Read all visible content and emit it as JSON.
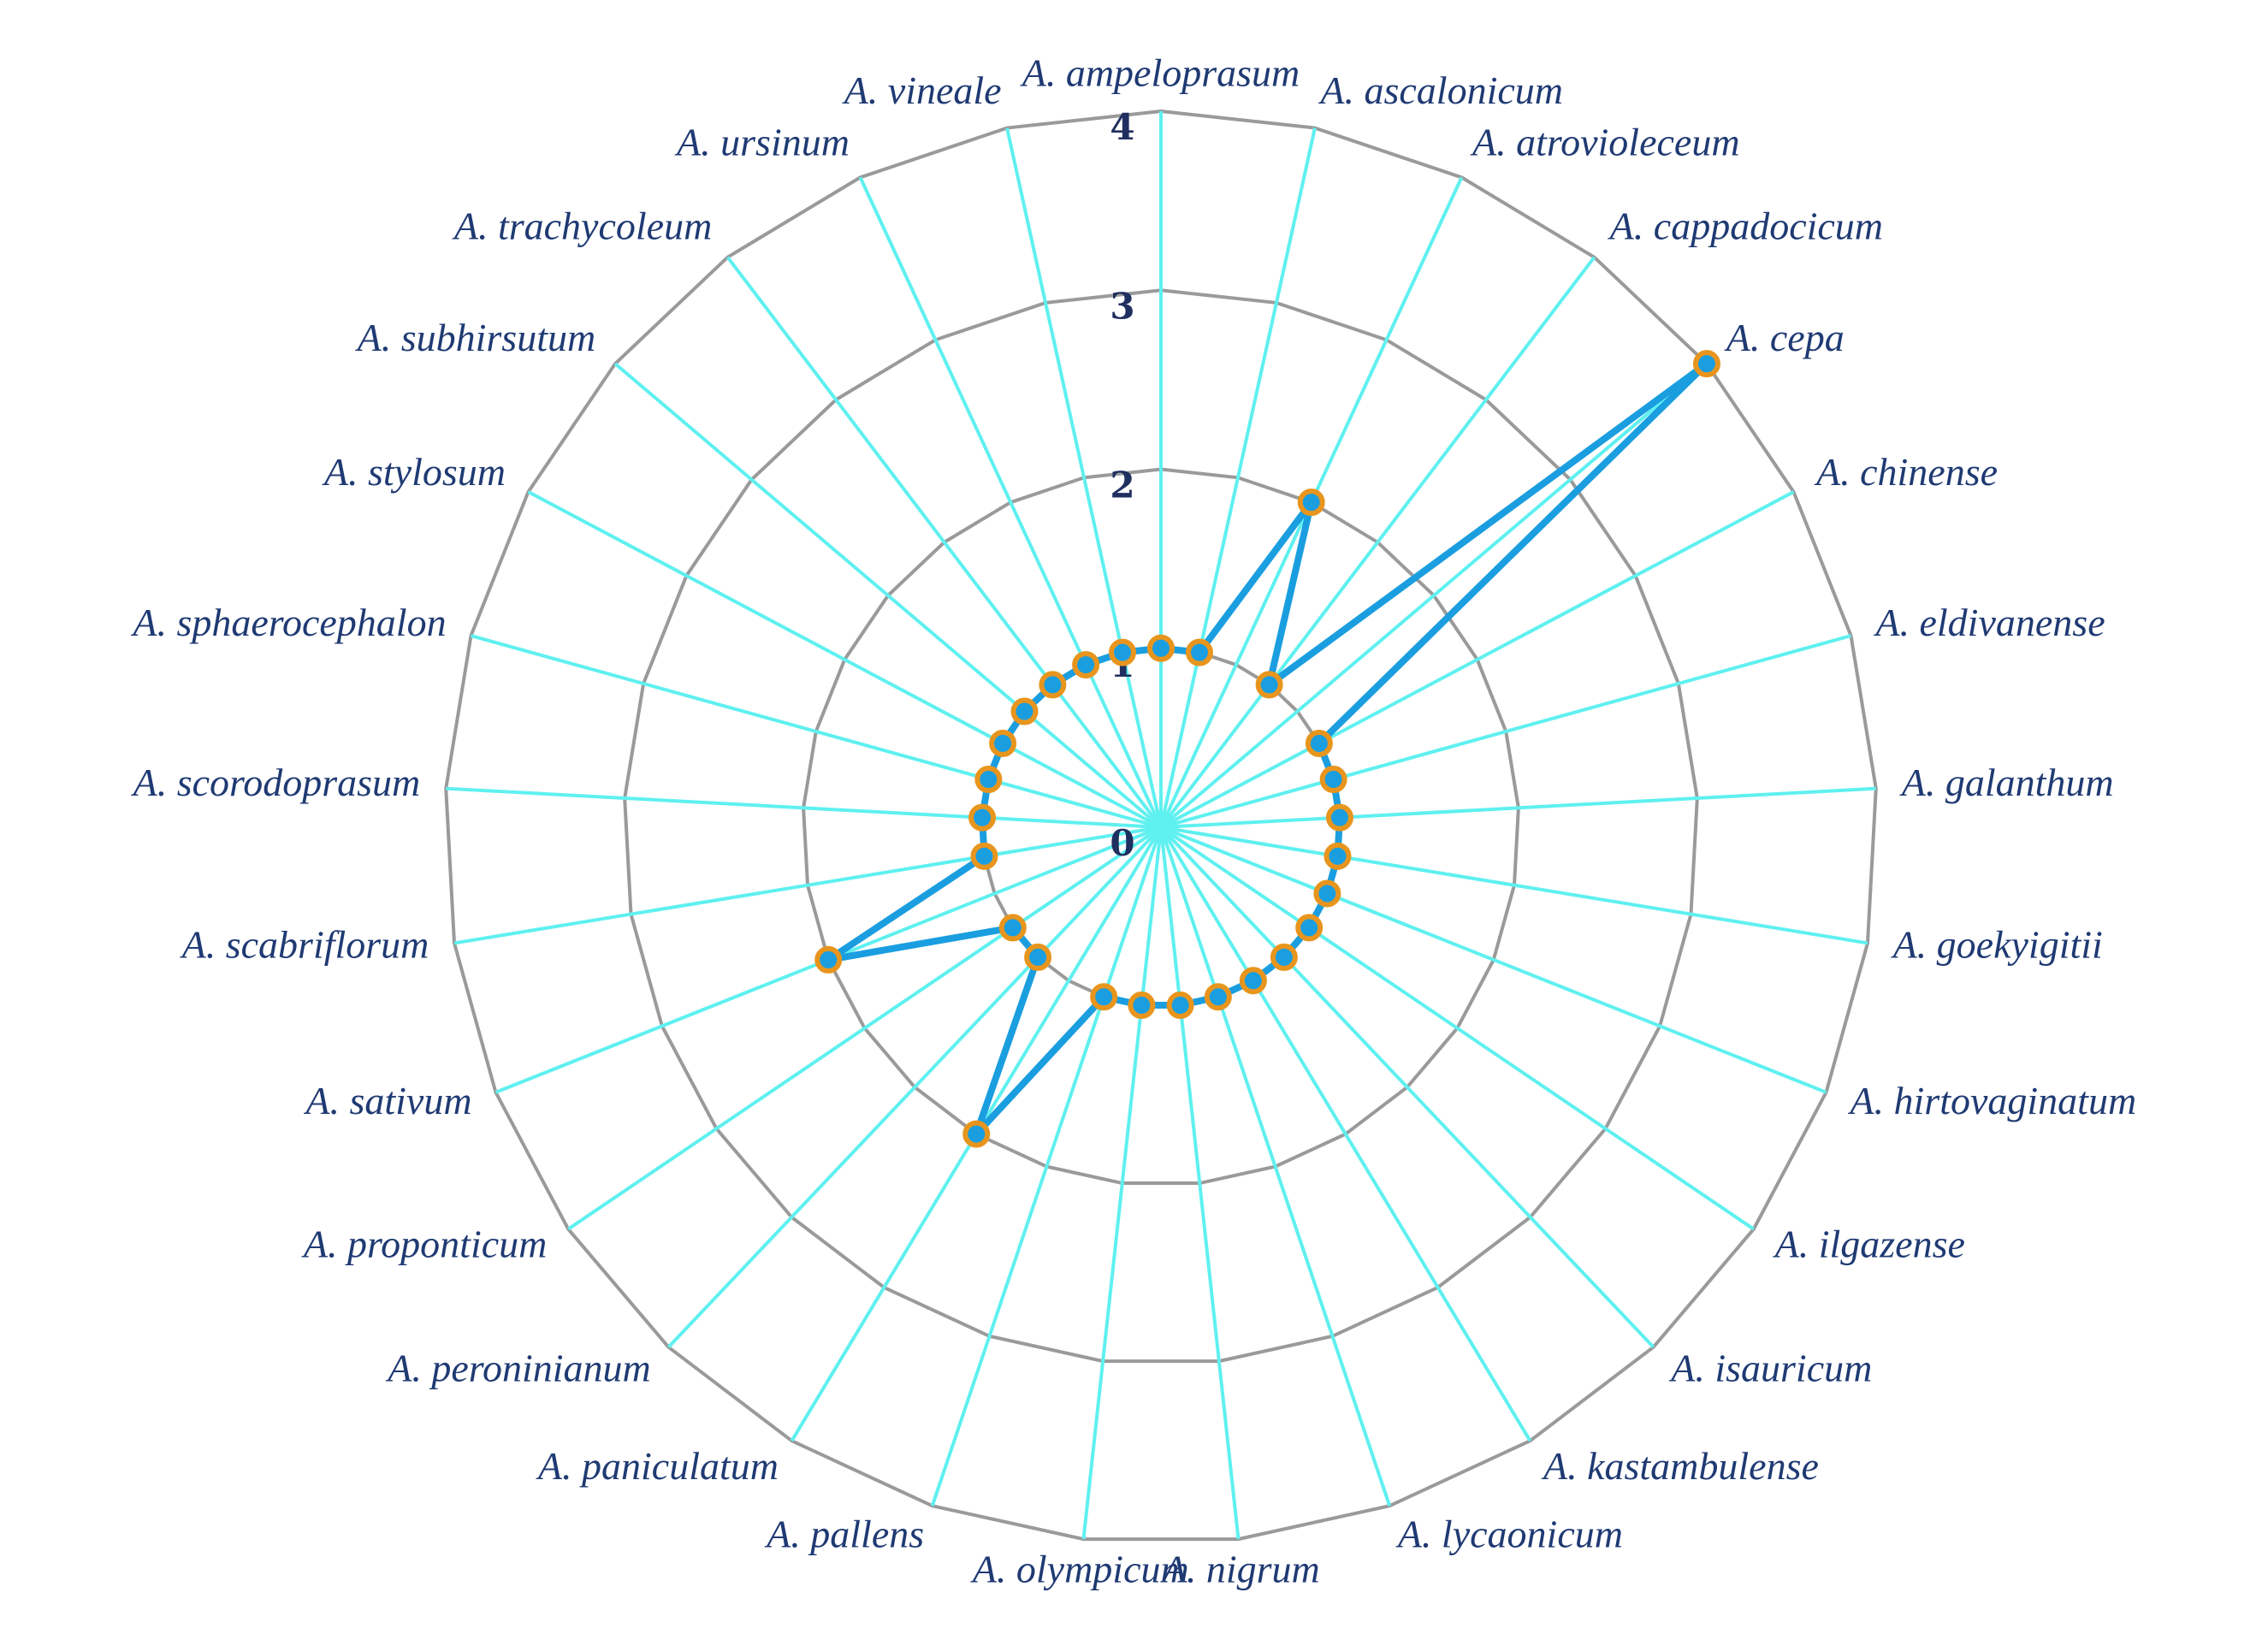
{
  "chart_data": {
    "type": "radar",
    "categories": [
      "A. ampeloprasum",
      "A. ascalonicum",
      "A. atrovioleceum",
      "A. cappadocicum",
      "A. cepa",
      "A. chinense",
      "A. eldivanense",
      "A. galanthum",
      "A. goekyigitii",
      "A. hirtovaginatum",
      "A. ilgazense",
      "A. isauricum",
      "A. kastambulense",
      "A. lycaonicum",
      "A. nigrum",
      "A. olympicum",
      "A. pallens",
      "A. paniculatum",
      "A. peroninianum",
      "A. proponticum",
      "A. sativum",
      "A. scabriflorum",
      "A. scorodoprasum",
      "A. sphaerocephalon",
      "A. stylosum",
      "A. subhirsutum",
      "A. trachycoleum",
      "A. ursinum",
      "A. vineale"
    ],
    "values": [
      1,
      1,
      2,
      1,
      4,
      1,
      1,
      1,
      1,
      1,
      1,
      1,
      1,
      1,
      1,
      1,
      1,
      2,
      1,
      1,
      2,
      1,
      1,
      1,
      1,
      1,
      1,
      1,
      1
    ],
    "color": "#1a9ee0",
    "marker_edge": "#e8951e",
    "spoke_color": "#5ff0f0",
    "grid_color": "#9a9a9a",
    "ylim": [
      0,
      4
    ],
    "yticks": [
      0,
      1,
      2,
      3,
      4
    ]
  }
}
